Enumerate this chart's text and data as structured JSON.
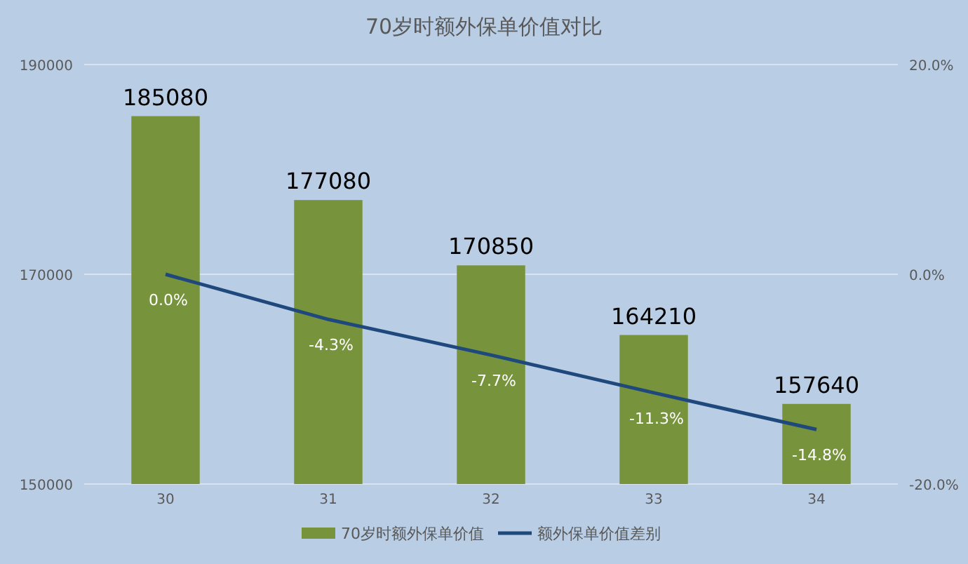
{
  "chart_data": {
    "type": "bar",
    "title": "70岁时额外保单价值对比",
    "categories": [
      "30",
      "31",
      "32",
      "33",
      "34"
    ],
    "series": [
      {
        "name": "70岁时额外保单价值",
        "color": "#77933c",
        "values": [
          185080,
          177080,
          170850,
          164210,
          157640
        ],
        "data_labels": true
      },
      {
        "name": "额外保单价值差别",
        "type": "line",
        "axis": "y2",
        "color": "#1f497d",
        "values": [
          0.0,
          -4.3,
          -7.7,
          -11.3,
          -14.8
        ],
        "value_labels": [
          "0.0%",
          "-4.3%",
          "-7.7%",
          "-11.3%",
          "-14.8%"
        ],
        "marker": "none",
        "line_style": "solid"
      }
    ],
    "ylim": [
      150000,
      190000
    ],
    "yticks": [
      150000,
      170000,
      190000
    ],
    "y2lim": [
      -20,
      20
    ],
    "y2ticks": [
      {
        "value": -20,
        "label": "-20.0%"
      },
      {
        "value": 0,
        "label": "0.0%"
      },
      {
        "value": 20,
        "label": "20.0%"
      }
    ],
    "grid": "y",
    "legend": "bottom"
  }
}
